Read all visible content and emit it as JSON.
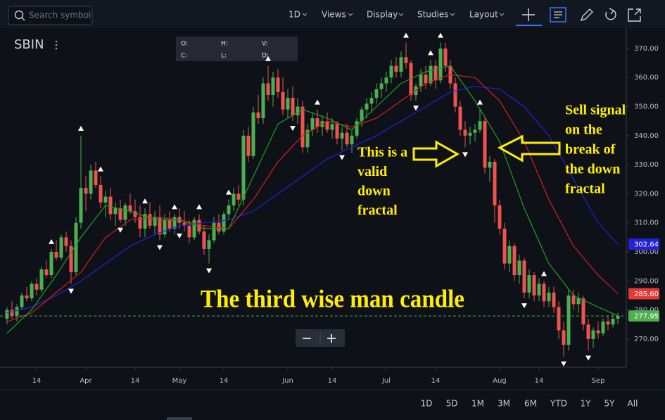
{
  "toolbar": {
    "search": "Search symbol",
    "interval": "1D",
    "menus": [
      "Views",
      "Display",
      "Studies",
      "Layout"
    ]
  },
  "range_buttons": [
    "1D",
    "5D",
    "1M",
    "3M",
    "6M",
    "YTD",
    "1Y",
    "5Y",
    "All"
  ],
  "chart_data": {
    "type": "candlestick",
    "symbol": "SBIN",
    "legend_labels": [
      "O:",
      "H:",
      "V:",
      "C:",
      "L:",
      "D:"
    ],
    "categories": [
      null,
      null,
      null,
      null,
      null,
      null,
      "14",
      null,
      null,
      null,
      null,
      null,
      null,
      null,
      null,
      null,
      "Apr",
      null,
      null,
      null,
      null,
      null,
      null,
      null,
      null,
      null,
      "14",
      null,
      null,
      null,
      null,
      null,
      null,
      null,
      null,
      "May",
      null,
      null,
      null,
      null,
      null,
      null,
      null,
      null,
      "14",
      null,
      null,
      null,
      null,
      null,
      null,
      null,
      null,
      null,
      null,
      null,
      null,
      "Jun",
      null,
      null,
      null,
      null,
      null,
      null,
      null,
      null,
      "14",
      null,
      null,
      null,
      null,
      null,
      null,
      null,
      null,
      null,
      null,
      "Jul",
      null,
      null,
      null,
      null,
      null,
      null,
      null,
      null,
      null,
      "14",
      null,
      null,
      null,
      null,
      null,
      null,
      null,
      null,
      null,
      null,
      null,
      null,
      "Aug",
      null,
      null,
      null,
      null,
      null,
      null,
      null,
      "14",
      null,
      null,
      null,
      null,
      null,
      null,
      null,
      null,
      null,
      null,
      null,
      "Sep",
      null,
      null,
      null,
      null
    ],
    "values": [
      [
        277,
        281,
        275,
        280
      ],
      [
        280,
        283,
        277,
        278
      ],
      [
        278,
        282,
        276,
        281
      ],
      [
        281,
        286,
        280,
        285
      ],
      [
        285,
        288,
        283,
        284
      ],
      [
        284,
        290,
        283,
        289
      ],
      [
        289,
        291,
        285,
        287
      ],
      [
        287,
        295,
        286,
        294
      ],
      [
        294,
        297,
        291,
        292
      ],
      [
        292,
        301,
        291,
        300
      ],
      [
        300,
        304,
        297,
        298
      ],
      [
        298,
        306,
        297,
        305
      ],
      [
        305,
        307,
        300,
        302
      ],
      [
        302,
        304,
        289,
        293
      ],
      [
        293,
        312,
        292,
        310
      ],
      [
        310,
        340,
        308,
        322
      ],
      [
        322,
        326,
        314,
        320
      ],
      [
        320,
        330,
        318,
        328
      ],
      [
        328,
        331,
        322,
        323
      ],
      [
        323,
        326,
        315,
        317
      ],
      [
        317,
        321,
        312,
        319
      ],
      [
        319,
        322,
        311,
        313
      ],
      [
        313,
        317,
        309,
        315
      ],
      [
        315,
        318,
        310,
        311
      ],
      [
        311,
        317,
        309,
        316
      ],
      [
        316,
        320,
        313,
        314
      ],
      [
        314,
        318,
        310,
        312
      ],
      [
        312,
        316,
        305,
        308
      ],
      [
        308,
        315,
        305,
        313
      ],
      [
        313,
        317,
        308,
        309
      ],
      [
        309,
        314,
        306,
        312
      ],
      [
        312,
        316,
        304,
        306
      ],
      [
        306,
        313,
        305,
        311
      ],
      [
        311,
        314,
        307,
        308
      ],
      [
        308,
        313,
        306,
        312
      ],
      [
        312,
        315,
        308,
        310
      ],
      [
        310,
        314,
        307,
        309
      ],
      [
        309,
        311,
        303,
        305
      ],
      [
        305,
        312,
        304,
        311
      ],
      [
        311,
        313,
        306,
        307
      ],
      [
        307,
        309,
        299,
        301
      ],
      [
        301,
        306,
        296,
        304
      ],
      [
        304,
        312,
        303,
        310
      ],
      [
        310,
        313,
        306,
        307
      ],
      [
        307,
        314,
        306,
        313
      ],
      [
        313,
        318,
        311,
        316
      ],
      [
        316,
        322,
        314,
        320
      ],
      [
        320,
        323,
        316,
        318
      ],
      [
        318,
        342,
        316,
        340
      ],
      [
        340,
        343,
        331,
        333
      ],
      [
        333,
        350,
        332,
        348
      ],
      [
        348,
        354,
        344,
        346
      ],
      [
        346,
        360,
        344,
        358
      ],
      [
        358,
        364,
        352,
        354
      ],
      [
        354,
        362,
        350,
        360
      ],
      [
        360,
        363,
        353,
        355
      ],
      [
        355,
        360,
        347,
        349
      ],
      [
        349,
        356,
        346,
        353
      ],
      [
        353,
        357,
        345,
        347
      ],
      [
        347,
        353,
        344,
        350
      ],
      [
        350,
        352,
        334,
        336
      ],
      [
        336,
        344,
        334,
        342
      ],
      [
        342,
        348,
        340,
        346
      ],
      [
        346,
        349,
        341,
        343
      ],
      [
        343,
        347,
        340,
        345
      ],
      [
        345,
        348,
        341,
        342
      ],
      [
        342,
        346,
        339,
        344
      ],
      [
        344,
        345,
        337,
        339
      ],
      [
        339,
        343,
        335,
        341
      ],
      [
        341,
        344,
        336,
        337
      ],
      [
        337,
        342,
        334,
        340
      ],
      [
        340,
        346,
        339,
        345
      ],
      [
        345,
        350,
        343,
        349
      ],
      [
        349,
        353,
        346,
        351
      ],
      [
        351,
        355,
        348,
        353
      ],
      [
        353,
        358,
        351,
        356
      ],
      [
        356,
        360,
        353,
        358
      ],
      [
        358,
        362,
        355,
        360
      ],
      [
        360,
        366,
        358,
        364
      ],
      [
        364,
        367,
        360,
        362
      ],
      [
        362,
        369,
        360,
        367
      ],
      [
        367,
        372,
        363,
        365
      ],
      [
        365,
        366,
        352,
        354
      ],
      [
        354,
        358,
        352,
        357
      ],
      [
        357,
        363,
        355,
        361
      ],
      [
        361,
        364,
        356,
        358
      ],
      [
        358,
        366,
        357,
        364
      ],
      [
        364,
        366,
        356,
        359
      ],
      [
        359,
        372,
        358,
        370
      ],
      [
        370,
        372,
        362,
        364
      ],
      [
        364,
        366,
        356,
        358
      ],
      [
        358,
        360,
        348,
        350
      ],
      [
        350,
        352,
        340,
        342
      ],
      [
        342,
        345,
        336,
        340
      ],
      [
        340,
        343,
        337,
        341
      ],
      [
        341,
        344,
        338,
        342
      ],
      [
        342,
        349,
        341,
        345
      ],
      [
        345,
        346,
        327,
        329
      ],
      [
        329,
        333,
        324,
        331
      ],
      [
        331,
        332,
        310,
        316
      ],
      [
        316,
        318,
        306,
        308
      ],
      [
        308,
        310,
        294,
        296
      ],
      [
        296,
        304,
        293,
        302
      ],
      [
        302,
        303,
        290,
        292
      ],
      [
        292,
        299,
        289,
        297
      ],
      [
        297,
        298,
        284,
        286
      ],
      [
        286,
        294,
        284,
        292
      ],
      [
        292,
        293,
        283,
        285
      ],
      [
        285,
        291,
        283,
        289
      ],
      [
        289,
        290,
        281,
        283
      ],
      [
        283,
        288,
        281,
        286
      ],
      [
        286,
        288,
        279,
        281
      ],
      [
        281,
        283,
        270,
        273
      ],
      [
        273,
        276,
        264,
        268
      ],
      [
        268,
        287,
        266,
        285
      ],
      [
        285,
        287,
        280,
        282
      ],
      [
        282,
        286,
        279,
        284
      ],
      [
        284,
        285,
        273,
        275
      ],
      [
        275,
        277,
        266,
        270
      ],
      [
        270,
        274,
        267,
        273
      ],
      [
        273,
        276,
        270,
        272
      ],
      [
        272,
        277,
        271,
        276
      ],
      [
        276,
        278,
        273,
        275
      ],
      [
        275,
        279,
        274,
        277
      ],
      [
        277,
        279,
        275,
        277.95
      ]
    ],
    "up_color": "#4caf50",
    "down_color": "#ef5350",
    "up_fractals": [
      9,
      15,
      19,
      28,
      34,
      39,
      45,
      53,
      63,
      81,
      86,
      88,
      96,
      109
    ],
    "down_fractals": [
      13,
      23,
      31,
      35,
      41,
      58,
      68,
      83,
      93,
      105,
      113,
      118
    ],
    "series": [
      {
        "color": "#2323d6",
        "x": [
          0,
          5,
          10,
          15,
          20,
          25,
          30,
          35,
          40,
          45,
          50,
          55,
          60,
          65,
          70,
          75,
          80,
          85,
          90,
          95,
          100,
          105,
          110,
          115,
          120,
          124
        ],
        "values": [
          279,
          281,
          285,
          290,
          296,
          302,
          306,
          309,
          310,
          311,
          314,
          320,
          326,
          332,
          336,
          340,
          345,
          350,
          355,
          357,
          356,
          350,
          340,
          325,
          310,
          302.64
        ]
      },
      {
        "color": "#d41f1f",
        "x": [
          0,
          5,
          10,
          15,
          20,
          25,
          30,
          35,
          40,
          45,
          50,
          55,
          60,
          65,
          70,
          75,
          80,
          85,
          90,
          95,
          100,
          105,
          110,
          115,
          120,
          124
        ],
        "values": [
          276,
          279,
          286,
          293,
          305,
          311,
          312,
          311,
          309,
          308,
          318,
          331,
          340,
          345,
          343,
          346,
          352,
          358,
          361,
          360,
          352,
          338,
          318,
          302,
          292,
          285.6
        ],
        "value_labels": [
          null,
          null,
          null,
          null,
          null,
          null,
          null,
          null,
          null,
          null,
          null,
          null,
          null,
          null,
          null,
          null,
          null,
          null,
          null,
          null,
          null,
          null,
          null,
          null,
          null,
          "285.60"
        ]
      },
      {
        "color": "#1fa21f",
        "x": [
          0,
          5,
          10,
          15,
          20,
          25,
          30,
          35,
          40,
          45,
          50,
          55,
          60,
          65,
          70,
          75,
          80,
          85,
          90,
          95,
          100,
          105,
          110,
          115,
          120,
          124
        ],
        "values": [
          272,
          280,
          292,
          305,
          316,
          314,
          311,
          311,
          308,
          308,
          326,
          344,
          349,
          346,
          342,
          350,
          358,
          362,
          364,
          352,
          338,
          315,
          296,
          285,
          281,
          278
        ]
      }
    ],
    "ylim": [
      260.3,
      377
    ],
    "yticks": [
      {
        "value": 270,
        "label": "270.00"
      },
      {
        "value": 280,
        "label": "280.00"
      },
      {
        "value": 290,
        "label": "290.00"
      },
      {
        "value": 300,
        "label": "300.00"
      },
      {
        "value": 310,
        "label": "310.00"
      },
      {
        "value": 320,
        "label": "320.00"
      },
      {
        "value": 330,
        "label": "330.00"
      },
      {
        "value": 340,
        "label": "340.00"
      },
      {
        "value": 350,
        "label": "350.00"
      },
      {
        "value": 360,
        "label": "360.00"
      },
      {
        "value": 370,
        "label": "370.00"
      }
    ],
    "annotations": {
      "fractal_note": [
        "This is a",
        "valid",
        "down",
        "fractal"
      ],
      "sell_note": [
        "Sell signal",
        "on the",
        "break of",
        "the down",
        "fractal"
      ],
      "candle_note": "The third wise man candle"
    }
  }
}
